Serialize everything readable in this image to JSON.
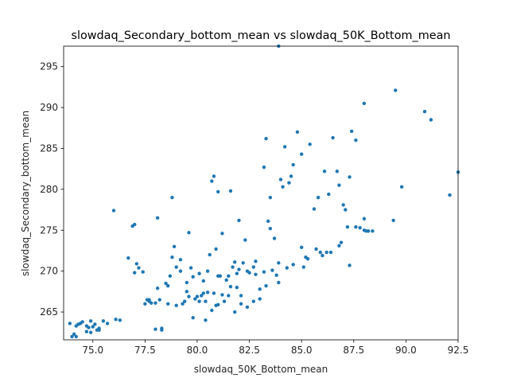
{
  "chart_data": {
    "type": "scatter",
    "title": "slowdaq_Secondary_bottom_mean vs slowdaq_50K_Bottom_mean",
    "xlabel": "slowdaq_50K_Bottom_mean",
    "ylabel": "slowdaq_Secondary_bottom_mean",
    "xlim": [
      73.6,
      92.5
    ],
    "ylim": [
      261.6,
      297.5
    ],
    "xticks": [
      75.0,
      77.5,
      80.0,
      82.5,
      85.0,
      87.5,
      90.0,
      92.5
    ],
    "xtick_labels": [
      "75.0",
      "77.5",
      "80.0",
      "82.5",
      "85.0",
      "87.5",
      "90.0",
      "92.5"
    ],
    "yticks": [
      265,
      270,
      275,
      280,
      285,
      290,
      295
    ],
    "ytick_labels": [
      "265",
      "270",
      "275",
      "280",
      "285",
      "290",
      "295"
    ],
    "grid": false,
    "legend": "none",
    "marker_color": "#1f77b4",
    "series": [
      {
        "x": [
          74.0,
          74.1,
          74.2,
          74.3,
          74.4,
          74.5,
          74.7,
          74.8,
          74.9,
          74.9,
          75.1,
          75.2,
          75.3,
          75.5,
          75.7,
          76.0,
          76.3,
          76.7,
          76.9,
          77.0,
          77.1,
          77.2,
          77.4,
          77.5,
          77.6,
          77.7,
          77.8,
          78.0,
          78.1,
          78.2,
          78.3,
          78.5,
          78.6,
          78.7,
          78.8,
          78.8,
          78.9,
          79.0,
          79.2,
          79.4,
          79.5,
          79.6,
          79.7,
          79.8,
          79.9,
          80.0,
          80.1,
          80.2,
          80.3,
          80.4,
          80.5,
          80.6,
          80.7,
          80.8,
          80.9,
          81.0,
          81.1,
          81.2,
          81.3,
          81.4,
          81.5,
          81.6,
          81.7,
          81.8,
          81.9,
          82.0,
          82.1,
          82.2,
          82.3,
          82.5,
          82.7,
          82.8,
          83.0,
          83.2,
          83.3,
          83.4,
          83.5,
          83.7,
          83.8,
          84.0,
          84.2,
          84.4,
          84.6,
          84.8,
          85.0,
          85.2,
          85.4,
          85.6,
          85.9,
          86.1,
          86.3,
          86.5,
          86.7,
          86.9,
          87.1,
          87.3,
          87.4,
          87.6,
          87.8,
          88.0,
          88.2,
          88.4,
          89.4,
          89.8,
          90.9,
          91.2,
          92.1,
          92.5,
          73.9,
          74.2,
          74.7,
          75.0,
          75.3,
          76.1,
          77.7,
          78.0,
          78.3,
          78.6,
          79.0,
          79.3,
          79.6,
          79.8,
          80.1,
          80.4,
          80.7,
          81.0,
          81.2,
          81.5,
          81.8,
          82.1,
          82.4,
          82.7,
          83.0,
          83.3,
          83.6,
          83.9,
          84.3,
          84.6,
          85.0,
          85.3,
          85.7,
          86.0,
          86.4,
          86.8,
          87.2,
          87.6,
          88.0,
          80.5,
          81.6,
          82.8,
          83.9,
          85.1,
          86.2,
          87.3,
          88.1,
          88.0,
          89.5,
          77.0,
          78.1,
          79.5,
          80.8,
          81.9,
          83.2,
          84.5,
          85.8,
          87.0,
          80.3,
          82.0,
          83.5,
          79.2,
          81.0,
          82.4,
          80.9,
          84.1,
          86.8,
          83.9
        ],
        "y": [
          262.0,
          262.3,
          263.3,
          263.5,
          263.6,
          263.8,
          262.6,
          263.1,
          262.5,
          263.9,
          263.5,
          262.8,
          263.0,
          263.9,
          263.6,
          277.4,
          264.0,
          271.6,
          275.5,
          275.7,
          270.9,
          270.4,
          269.9,
          266.0,
          266.5,
          266.3,
          266.1,
          262.9,
          276.5,
          266.5,
          262.8,
          268.5,
          268.2,
          269.4,
          271.7,
          279.0,
          273.0,
          270.5,
          271.4,
          266.3,
          268.6,
          274.7,
          270.4,
          269.3,
          266.6,
          266.9,
          269.7,
          267.0,
          267.3,
          266.3,
          270.0,
          272.0,
          281.0,
          281.6,
          272.7,
          279.7,
          269.4,
          274.6,
          266.3,
          268.9,
          269.4,
          279.8,
          270.5,
          271.1,
          269.7,
          276.2,
          267.0,
          271.0,
          273.8,
          269.8,
          270.5,
          271.2,
          266.6,
          282.7,
          286.2,
          276.1,
          279.0,
          274.0,
          269.5,
          281.2,
          285.2,
          280.8,
          283.0,
          287.0,
          284.3,
          271.7,
          285.5,
          277.6,
          272.3,
          282.2,
          279.4,
          286.3,
          282.2,
          273.5,
          277.5,
          281.5,
          287.1,
          286.0,
          275.3,
          276.4,
          274.9,
          274.9,
          276.2,
          280.3,
          289.5,
          288.5,
          279.3,
          282.1,
          263.6,
          262.0,
          263.3,
          263.2,
          262.8,
          264.1,
          266.5,
          266.1,
          263.0,
          266.0,
          265.8,
          266.0,
          266.9,
          264.3,
          266.3,
          264.0,
          265.2,
          265.9,
          267.1,
          267.0,
          265.0,
          266.0,
          265.6,
          266.3,
          267.8,
          268.2,
          270.1,
          271.0,
          270.4,
          270.8,
          272.9,
          271.5,
          272.7,
          271.9,
          272.3,
          273.1,
          275.4,
          275.4,
          275.0,
          267.4,
          268.1,
          269.6,
          268.6,
          270.5,
          272.3,
          270.7,
          274.9,
          290.5,
          292.1,
          269.8,
          267.9,
          267.5,
          267.3,
          268.0,
          269.9,
          281.6,
          279.0,
          278.1,
          268.8,
          270.2,
          275.2,
          270.0,
          269.4,
          270.0,
          265.8,
          280.3,
          280.5,
          297.5
        ]
      }
    ]
  }
}
